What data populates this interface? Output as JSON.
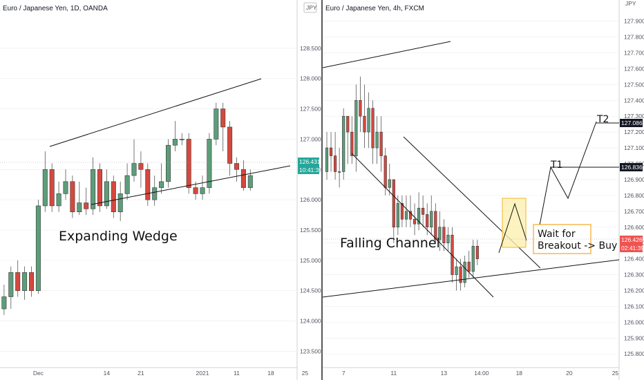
{
  "colors": {
    "up": "#5d9d7a",
    "down": "#d5483e",
    "line": "#111111",
    "badge": "#26a69a",
    "badge_red": "#ef5350",
    "target": "#131722",
    "box_fill": "#fdf0b0",
    "box_stroke": "#f0b429",
    "note_stroke": "#f5a623",
    "grid": "#ececec"
  },
  "chart_data": [
    {
      "type": "candlestick",
      "title": "Euro / Japanese Yen, 1D, OANDA",
      "currency": "JPY",
      "ylim": [
        123.3,
        129.0
      ],
      "y_ticks": [
        "123.500",
        "124.000",
        "124.500",
        "125.000",
        "125.500",
        "126.000",
        "126.500",
        "127.000",
        "127.500",
        "128.000",
        "128.500"
      ],
      "x_ticks": [
        {
          "label": "Dec",
          "i": 6
        },
        {
          "label": "14",
          "i": 16
        },
        {
          "label": "21",
          "i": 21
        },
        {
          "label": "2021",
          "i": 30
        },
        {
          "label": "11",
          "i": 35
        },
        {
          "label": "18",
          "i": 40
        },
        {
          "label": "25",
          "i": 45
        }
      ],
      "price_label": "126.431",
      "time_label": "10:41:39",
      "candles": [
        [
          123.75,
          124.2,
          123.65,
          124.3
        ],
        [
          124.2,
          124.4,
          124.1,
          124.6
        ],
        [
          124.4,
          124.8,
          124.2,
          124.9
        ],
        [
          124.8,
          124.5,
          124.4,
          125.0
        ],
        [
          124.5,
          124.8,
          124.35,
          124.9
        ],
        [
          124.8,
          124.5,
          124.4,
          124.9
        ],
        [
          124.5,
          125.9,
          124.45,
          126.0
        ],
        [
          125.9,
          126.5,
          125.8,
          126.8
        ],
        [
          126.5,
          125.9,
          125.8,
          126.6
        ],
        [
          125.9,
          126.1,
          125.8,
          126.3
        ],
        [
          126.1,
          126.3,
          126.0,
          126.5
        ],
        [
          126.3,
          125.8,
          125.7,
          126.4
        ],
        [
          125.8,
          125.95,
          125.75,
          126.3
        ],
        [
          125.95,
          125.85,
          125.75,
          126.2
        ],
        [
          125.85,
          126.5,
          125.75,
          126.7
        ],
        [
          126.5,
          125.9,
          125.8,
          126.6
        ],
        [
          125.9,
          126.3,
          125.85,
          126.5
        ],
        [
          126.3,
          125.8,
          125.7,
          126.4
        ],
        [
          125.8,
          126.1,
          125.65,
          126.3
        ],
        [
          126.1,
          126.4,
          126.0,
          126.6
        ],
        [
          126.4,
          126.6,
          126.3,
          127.0
        ],
        [
          126.6,
          126.5,
          126.2,
          126.8
        ],
        [
          126.5,
          126.0,
          125.9,
          126.6
        ],
        [
          126.0,
          126.2,
          125.9,
          126.4
        ],
        [
          126.2,
          126.3,
          126.1,
          126.6
        ],
        [
          126.3,
          126.9,
          126.2,
          127.0
        ],
        [
          126.9,
          127.0,
          126.8,
          127.3
        ],
        [
          127.0,
          127.0,
          126.9,
          127.1
        ],
        [
          127.0,
          126.2,
          126.1,
          127.1
        ],
        [
          126.2,
          126.1,
          126.0,
          126.3
        ],
        [
          126.1,
          126.2,
          126.0,
          126.4
        ],
        [
          126.2,
          127.0,
          126.1,
          127.1
        ],
        [
          127.0,
          127.5,
          126.9,
          127.6
        ],
        [
          127.5,
          127.2,
          126.8,
          127.6
        ],
        [
          127.2,
          126.6,
          126.4,
          127.3
        ],
        [
          126.6,
          126.5,
          126.3,
          126.7
        ],
        [
          126.5,
          126.2,
          126.15,
          126.65
        ],
        [
          126.2,
          126.4,
          126.15,
          126.5
        ]
      ],
      "text": "Expanding Wedge"
    },
    {
      "type": "candlestick",
      "title": "Euro / Japanese Yen, 4h, FXCM",
      "currency": "JPY",
      "ylim": [
        125.74,
        127.92
      ],
      "y_ticks": [
        "125.800",
        "125.900",
        "126.000",
        "126.100",
        "126.200",
        "126.300",
        "126.400",
        "126.500",
        "126.600",
        "126.700",
        "126.800",
        "126.900",
        "127.000",
        "127.100",
        "127.200",
        "127.300",
        "127.400",
        "127.500",
        "127.600",
        "127.700",
        "127.800",
        "127.900"
      ],
      "x_ticks": [
        {
          "label": "7",
          "i": 4
        },
        {
          "label": "11",
          "i": 16
        },
        {
          "label": "13",
          "i": 28
        },
        {
          "label": "14:00",
          "i": 37
        },
        {
          "label": "18",
          "i": 46
        },
        {
          "label": "20",
          "i": 58
        },
        {
          "label": "25",
          "i": 69
        }
      ],
      "price_label": "126.426",
      "time_label": "02:41:39",
      "candles": [
        [
          126.95,
          127.1,
          126.9,
          127.2
        ],
        [
          127.1,
          127.05,
          126.95,
          127.2
        ],
        [
          127.05,
          126.95,
          126.9,
          127.2
        ],
        [
          126.95,
          126.95,
          126.85,
          127.1
        ],
        [
          126.95,
          127.3,
          126.9,
          127.35
        ],
        [
          127.3,
          127.2,
          127.0,
          127.3
        ],
        [
          127.2,
          127.05,
          127.0,
          127.3
        ],
        [
          127.05,
          127.4,
          126.95,
          127.5
        ],
        [
          127.4,
          127.3,
          127.2,
          127.55
        ],
        [
          127.3,
          127.2,
          127.1,
          127.5
        ],
        [
          127.2,
          127.35,
          127.1,
          127.45
        ],
        [
          127.35,
          127.1,
          127.0,
          127.4
        ],
        [
          127.1,
          127.2,
          127.0,
          127.3
        ],
        [
          127.2,
          127.05,
          126.95,
          127.3
        ],
        [
          127.05,
          126.85,
          126.8,
          127.1
        ],
        [
          126.85,
          126.9,
          126.8,
          127.0
        ],
        [
          126.9,
          126.6,
          126.5,
          126.9
        ],
        [
          126.6,
          126.75,
          126.55,
          126.8
        ],
        [
          126.75,
          126.65,
          126.6,
          126.8
        ],
        [
          126.65,
          126.7,
          126.6,
          126.8
        ],
        [
          126.7,
          126.65,
          126.6,
          126.8
        ],
        [
          126.65,
          126.62,
          126.55,
          126.75
        ],
        [
          126.62,
          126.72,
          126.58,
          126.82
        ],
        [
          126.72,
          126.68,
          126.6,
          126.8
        ],
        [
          126.68,
          126.6,
          126.55,
          126.75
        ],
        [
          126.6,
          126.7,
          126.55,
          126.8
        ],
        [
          126.7,
          126.52,
          126.5,
          126.75
        ],
        [
          126.52,
          126.6,
          126.45,
          126.7
        ],
        [
          126.6,
          126.5,
          126.45,
          126.65
        ],
        [
          126.5,
          126.55,
          126.45,
          126.6
        ],
        [
          126.55,
          126.3,
          126.25,
          126.6
        ],
        [
          126.3,
          126.35,
          126.2,
          126.4
        ],
        [
          126.35,
          126.25,
          126.2,
          126.4
        ],
        [
          126.25,
          126.38,
          126.22,
          126.42
        ],
        [
          126.38,
          126.32,
          126.28,
          126.45
        ],
        [
          126.32,
          126.48,
          126.28,
          126.52
        ],
        [
          126.48,
          126.4,
          126.36,
          126.52
        ]
      ],
      "text": "Falling Channel",
      "annotations": {
        "t1": "T1",
        "t1_price": "126.836",
        "t2": "T2",
        "t2_price": "127.086",
        "note_line1": "Wait for",
        "note_line2": "Breakout -> Buy"
      }
    }
  ]
}
